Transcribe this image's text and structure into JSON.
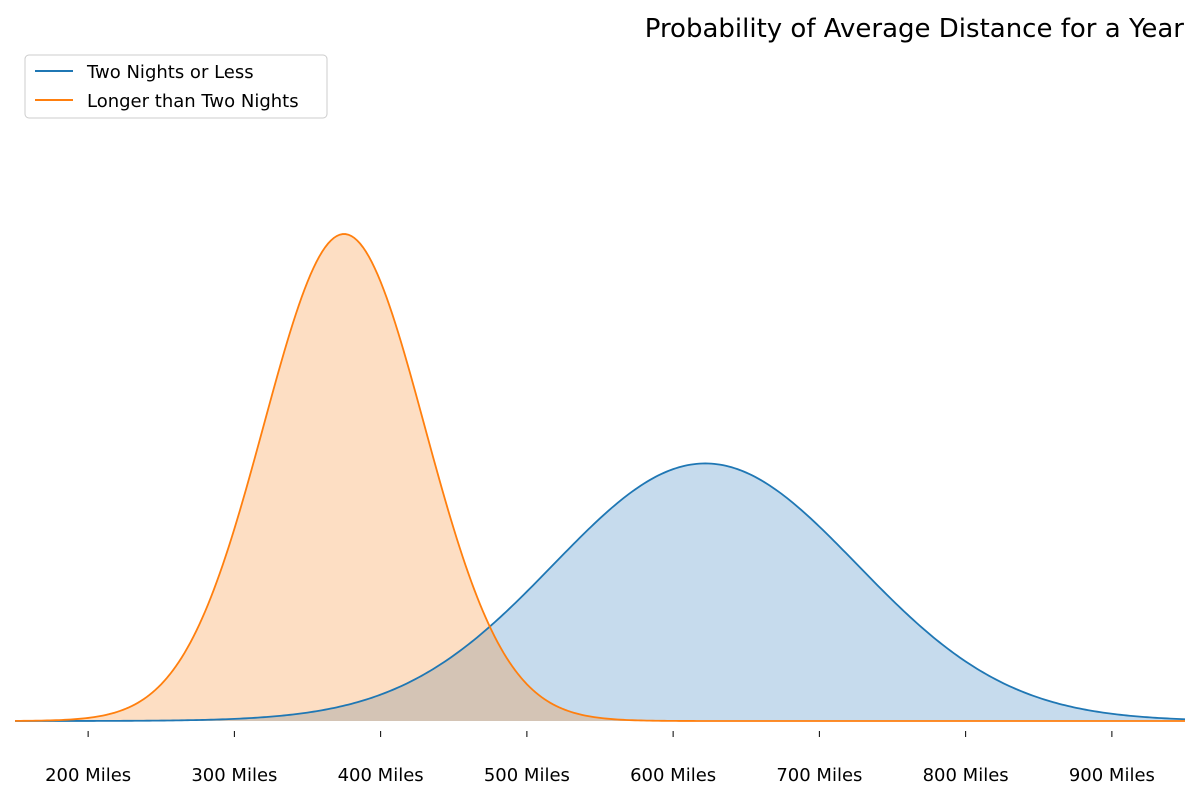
{
  "chart_data": {
    "type": "area",
    "title": "Probability of Average Distance for a Year",
    "xlabel": "",
    "ylabel": "",
    "xlim": [
      150,
      950
    ],
    "xticks": [
      {
        "value": 200,
        "label": "200 Miles"
      },
      {
        "value": 300,
        "label": "300 Miles"
      },
      {
        "value": 400,
        "label": "400 Miles"
      },
      {
        "value": 500,
        "label": "500 Miles"
      },
      {
        "value": 600,
        "label": "600 Miles"
      },
      {
        "value": 700,
        "label": "700 Miles"
      },
      {
        "value": 800,
        "label": "800 Miles"
      },
      {
        "value": 900,
        "label": "900 Miles"
      }
    ],
    "y_ticks_visible": false,
    "grid": false,
    "legend_position": "top-left",
    "series": [
      {
        "name": "Two Nights or Less",
        "color": "#1f77b4",
        "fill_color": "#c6dbed",
        "distribution": "normal",
        "mean": 622,
        "std": 104
      },
      {
        "name": "Longer than Two Nights",
        "color": "#ff7f0e",
        "fill_color": "#fddec3",
        "distribution": "normal",
        "mean": 375,
        "std": 55
      }
    ],
    "overlap_fill_color": "#d4c4b5"
  }
}
